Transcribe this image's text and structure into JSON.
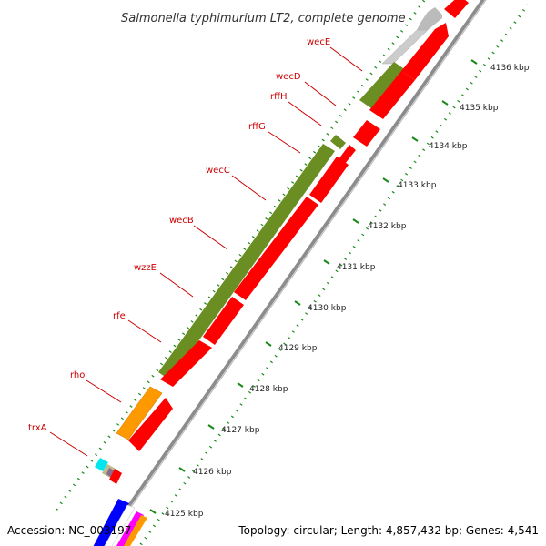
{
  "title": "Salmonella typhimurium LT2, complete genome",
  "footer": {
    "accession": "Accession: NC_003197",
    "summary": "Topology: circular; Length: 4,857,432 bp; Genes: 4,541"
  },
  "colors": {
    "backbone": "#8c8c8c",
    "cds": "#ff0000",
    "rrna_or_operon": "#6b8e23",
    "gene_orange": "#ff9900",
    "other_gray": "#bbbbbb",
    "gc_dots": "#1a8a1a",
    "label_red": "#cc0000"
  },
  "gene_labels": [
    "wecE",
    "wecD",
    "rffH",
    "rffG",
    "wecC",
    "wecB",
    "wzzE",
    "rfe",
    "rho",
    "trxA"
  ],
  "scale_ticks": [
    "4125 kbp",
    "4126 kbp",
    "4127 kbp",
    "4128 kbp",
    "4129 kbp",
    "4130 kbp",
    "4131 kbp",
    "4132 kbp",
    "4133 kbp",
    "4134 kbp",
    "4135 kbp",
    "4136 kbp"
  ]
}
